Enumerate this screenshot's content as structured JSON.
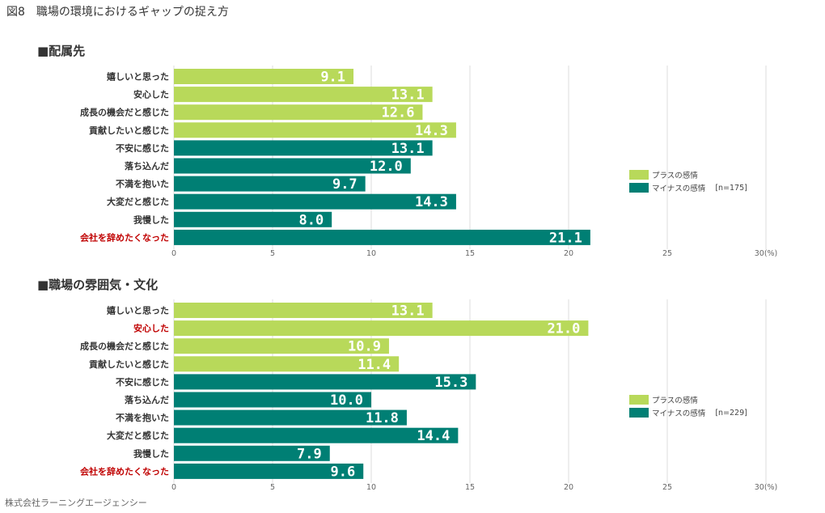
{
  "figure_title": "図8　職場の環境におけるギャップの捉え方",
  "footer": "株式会社ラーニングエージェンシー",
  "colors": {
    "plus": "#b8d95a",
    "minus": "#007f74",
    "highlight_label": "#c00000",
    "label": "#333333",
    "grid": "#dddddd"
  },
  "legend": {
    "plus_label": "プラスの感情",
    "minus_label": "マイナスの感情"
  },
  "chart_data": [
    {
      "type": "bar",
      "orientation": "horizontal",
      "title": "■配属先",
      "sample_size": "[n=175]",
      "xlim": [
        0,
        30
      ],
      "xticks": [
        "0",
        "5",
        "10",
        "15",
        "20",
        "25",
        "30(%)"
      ],
      "categories": [
        "嬉しいと思った",
        "安心した",
        "成長の機会だと感じた",
        "貢献したいと感じた",
        "不安に感じた",
        "落ち込んだ",
        "不満を抱いた",
        "大変だと感じた",
        "我慢した",
        "会社を辞めたくなった"
      ],
      "values": [
        9.1,
        13.1,
        12.6,
        14.3,
        13.1,
        12.0,
        9.7,
        14.3,
        8.0,
        21.1
      ],
      "sentiment": [
        "plus",
        "plus",
        "plus",
        "plus",
        "minus",
        "minus",
        "minus",
        "minus",
        "minus",
        "minus"
      ],
      "highlight": [
        false,
        false,
        false,
        false,
        false,
        false,
        false,
        false,
        false,
        true
      ]
    },
    {
      "type": "bar",
      "orientation": "horizontal",
      "title": "■職場の雰囲気・文化",
      "sample_size": "[n=229]",
      "xlim": [
        0,
        30
      ],
      "xticks": [
        "0",
        "5",
        "10",
        "15",
        "20",
        "25",
        "30(%)"
      ],
      "categories": [
        "嬉しいと思った",
        "安心した",
        "成長の機会だと感じた",
        "貢献したいと感じた",
        "不安に感じた",
        "落ち込んだ",
        "不満を抱いた",
        "大変だと感じた",
        "我慢した",
        "会社を辞めたくなった"
      ],
      "values": [
        13.1,
        21.0,
        10.9,
        11.4,
        15.3,
        10.0,
        11.8,
        14.4,
        7.9,
        9.6
      ],
      "sentiment": [
        "plus",
        "plus",
        "plus",
        "plus",
        "minus",
        "minus",
        "minus",
        "minus",
        "minus",
        "minus"
      ],
      "highlight": [
        false,
        true,
        false,
        false,
        false,
        false,
        false,
        false,
        false,
        true
      ]
    }
  ]
}
